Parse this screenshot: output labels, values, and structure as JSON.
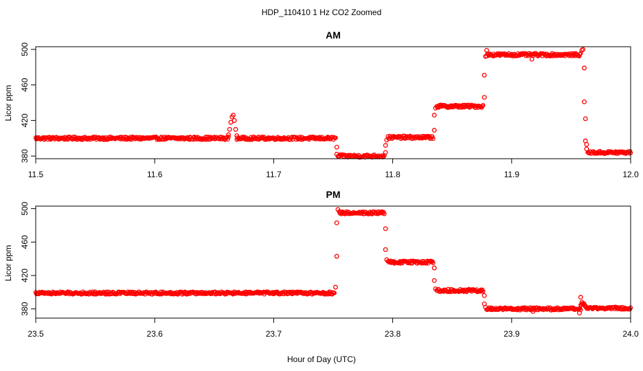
{
  "figure": {
    "title": "HDP_110410  1 Hz CO2 Zoomed",
    "xlabel": "Hour of Day (UTC)",
    "marker_color": "#ff0000"
  },
  "chart_data": [
    {
      "type": "scatter",
      "title": "AM",
      "xlabel": "Hour of Day (UTC)",
      "ylabel": "Licor ppm",
      "xlim": [
        11.5,
        12.0
      ],
      "ylim": [
        377,
        503
      ],
      "xticks": [
        "11.5",
        "11.6",
        "11.7",
        "11.8",
        "11.9",
        "12.0"
      ],
      "yticks": [
        "380",
        "420",
        "460",
        "500"
      ],
      "marker": "open-circle",
      "color": "#ff0000",
      "series": [
        {
          "segments": [
            {
              "x": [
                11.5,
                11.662
              ],
              "y": 400
            },
            {
              "x": [
                11.669,
                11.752
              ],
              "y": 400
            },
            {
              "x": [
                11.754,
                11.793
              ],
              "y": 380
            },
            {
              "x": [
                11.796,
                11.834
              ],
              "y": 401
            },
            {
              "x": [
                11.837,
                11.876
              ],
              "y": 436
            },
            {
              "x": [
                11.879,
                11.958
              ],
              "y": 494
            },
            {
              "x": [
                11.964,
                12.0
              ],
              "y": 384
            }
          ],
          "points": [
            {
              "x": 11.662,
              "y": 404
            },
            {
              "x": 11.663,
              "y": 410
            },
            {
              "x": 11.664,
              "y": 418
            },
            {
              "x": 11.665,
              "y": 424
            },
            {
              "x": 11.666,
              "y": 426
            },
            {
              "x": 11.667,
              "y": 420
            },
            {
              "x": 11.668,
              "y": 410
            },
            {
              "x": 11.669,
              "y": 403
            },
            {
              "x": 11.753,
              "y": 390
            },
            {
              "x": 11.753,
              "y": 382
            },
            {
              "x": 11.794,
              "y": 384
            },
            {
              "x": 11.794,
              "y": 392
            },
            {
              "x": 11.795,
              "y": 398
            },
            {
              "x": 11.835,
              "y": 409
            },
            {
              "x": 11.835,
              "y": 426
            },
            {
              "x": 11.836,
              "y": 434
            },
            {
              "x": 11.877,
              "y": 446
            },
            {
              "x": 11.877,
              "y": 471
            },
            {
              "x": 11.878,
              "y": 492
            },
            {
              "x": 11.879,
              "y": 499
            },
            {
              "x": 11.917,
              "y": 489
            },
            {
              "x": 11.959,
              "y": 499
            },
            {
              "x": 11.96,
              "y": 500
            },
            {
              "x": 11.961,
              "y": 479
            },
            {
              "x": 11.961,
              "y": 441
            },
            {
              "x": 11.962,
              "y": 422
            },
            {
              "x": 11.962,
              "y": 397
            },
            {
              "x": 11.963,
              "y": 393
            },
            {
              "x": 11.963,
              "y": 388
            }
          ]
        }
      ]
    },
    {
      "type": "scatter",
      "title": "PM",
      "xlabel": "Hour of Day (UTC)",
      "ylabel": "Licor ppm",
      "xlim": [
        23.5,
        24.0
      ],
      "ylim": [
        369,
        503
      ],
      "xticks": [
        "23.5",
        "23.6",
        "23.7",
        "23.8",
        "23.9",
        "24.0"
      ],
      "yticks": [
        "380",
        "420",
        "460",
        "500"
      ],
      "marker": "open-circle",
      "color": "#ff0000",
      "series": [
        {
          "segments": [
            {
              "x": [
                23.5,
                23.751
              ],
              "y": 399
            },
            {
              "x": [
                23.755,
                23.793
              ],
              "y": 495
            },
            {
              "x": [
                23.796,
                23.834
              ],
              "y": 436
            },
            {
              "x": [
                23.837,
                23.876
              ],
              "y": 402
            },
            {
              "x": [
                23.879,
                23.958
              ],
              "y": 380
            },
            {
              "x": [
                23.958,
                23.962
              ],
              "y": 385
            },
            {
              "x": [
                23.962,
                24.0
              ],
              "y": 381
            }
          ],
          "points": [
            {
              "x": 23.752,
              "y": 406
            },
            {
              "x": 23.753,
              "y": 443
            },
            {
              "x": 23.753,
              "y": 483
            },
            {
              "x": 23.754,
              "y": 499
            },
            {
              "x": 23.794,
              "y": 476
            },
            {
              "x": 23.794,
              "y": 451
            },
            {
              "x": 23.795,
              "y": 439
            },
            {
              "x": 23.835,
              "y": 429
            },
            {
              "x": 23.835,
              "y": 414
            },
            {
              "x": 23.836,
              "y": 404
            },
            {
              "x": 23.877,
              "y": 396
            },
            {
              "x": 23.877,
              "y": 386
            },
            {
              "x": 23.878,
              "y": 382
            },
            {
              "x": 23.918,
              "y": 377
            },
            {
              "x": 23.957,
              "y": 375
            },
            {
              "x": 23.958,
              "y": 394
            },
            {
              "x": 23.959,
              "y": 388
            }
          ]
        }
      ]
    }
  ]
}
